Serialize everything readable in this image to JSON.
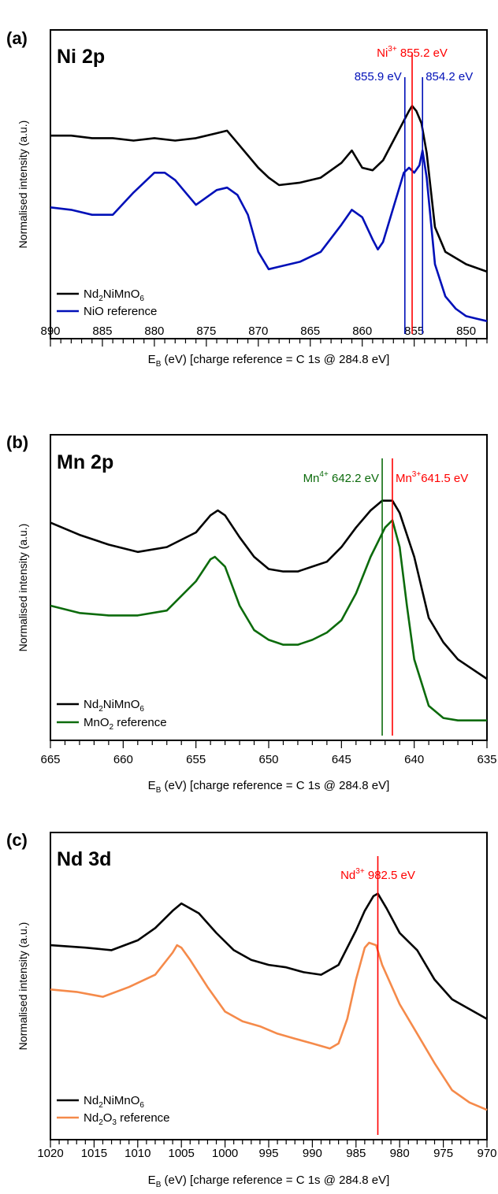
{
  "chart_data": [
    {
      "type": "line",
      "panel_label": "(a)",
      "title": "Ni 2p",
      "xlabel": "(eV) [charge reference = C 1s @ 284.8 eV]",
      "ylabel": "Normalised intensity (a.u.)",
      "xlim": [
        890,
        848
      ],
      "x_ticks": [
        "890",
        "885",
        "880",
        "875",
        "870",
        "865",
        "860",
        "855",
        "850"
      ],
      "x_tick_values": [
        890,
        885,
        880,
        875,
        870,
        865,
        860,
        855,
        850
      ],
      "ylim": [
        0,
        1
      ],
      "legend_position": "bottom-left",
      "series": [
        {
          "name": "Nd2NiMnO6",
          "legend_label": {
            "pre": "Nd",
            "sub1": "2",
            "mid": "NiMnO",
            "sub2": "6",
            "post": ""
          },
          "color": "#000000",
          "x": [
            890,
            888,
            886,
            884,
            882,
            880,
            878,
            876,
            874,
            873,
            872,
            870,
            869,
            868,
            866,
            864,
            862,
            861,
            860,
            859,
            858,
            857,
            856,
            855.5,
            855.2,
            854.8,
            854.3,
            853.8,
            853,
            852,
            850,
            848
          ],
          "y": [
            0.77,
            0.77,
            0.76,
            0.76,
            0.75,
            0.76,
            0.75,
            0.76,
            0.78,
            0.79,
            0.74,
            0.64,
            0.6,
            0.57,
            0.58,
            0.6,
            0.66,
            0.71,
            0.64,
            0.63,
            0.67,
            0.75,
            0.83,
            0.87,
            0.89,
            0.87,
            0.82,
            0.7,
            0.4,
            0.3,
            0.25,
            0.22
          ]
        },
        {
          "name": "NiO reference",
          "legend_label": {
            "pre": "NiO reference",
            "sub1": "",
            "mid": "",
            "sub2": "",
            "post": ""
          },
          "color": "#0010b8",
          "x": [
            890,
            888,
            886,
            884,
            882,
            880,
            879,
            878,
            877,
            876,
            875,
            874,
            873,
            872,
            871,
            870,
            869,
            868,
            866,
            864,
            862,
            861,
            860,
            859,
            858.5,
            858,
            857,
            856,
            855.5,
            855,
            854.5,
            854.2,
            853.8,
            853,
            852,
            851,
            850,
            849,
            848
          ],
          "y": [
            0.48,
            0.47,
            0.45,
            0.45,
            0.54,
            0.62,
            0.62,
            0.59,
            0.54,
            0.49,
            0.52,
            0.55,
            0.56,
            0.53,
            0.45,
            0.3,
            0.23,
            0.24,
            0.26,
            0.3,
            0.41,
            0.47,
            0.44,
            0.35,
            0.31,
            0.34,
            0.48,
            0.62,
            0.64,
            0.62,
            0.65,
            0.71,
            0.6,
            0.25,
            0.12,
            0.07,
            0.04,
            0.03,
            0.02
          ]
        }
      ],
      "annotations": [
        {
          "x": 855.2,
          "color": "#ff0000",
          "label_pre": "Ni",
          "label_sup": "3+",
          "label_post": " 855.2 eV",
          "label_anchor": "middle",
          "label_row": 0
        },
        {
          "x": 855.9,
          "color": "#0010b8",
          "label_pre": "855.9 eV",
          "label_sup": "",
          "label_post": "",
          "label_anchor": "end",
          "label_row": 1
        },
        {
          "x": 854.2,
          "color": "#0010b8",
          "label_pre": "854.2 eV",
          "label_sup": "",
          "label_post": "",
          "label_anchor": "start",
          "label_row": 1
        }
      ]
    },
    {
      "type": "line",
      "panel_label": "(b)",
      "title": "Mn 2p",
      "xlabel": "(eV) [charge reference = C 1s @ 284.8 eV]",
      "ylabel": "Normalised intensity (a.u.)",
      "xlim": [
        665,
        635
      ],
      "x_ticks": [
        "665",
        "660",
        "655",
        "650",
        "645",
        "640",
        "635"
      ],
      "x_tick_values": [
        665,
        660,
        655,
        650,
        645,
        640,
        635
      ],
      "ylim": [
        0,
        1
      ],
      "legend_position": "bottom-left",
      "series": [
        {
          "name": "Nd2NiMnO6",
          "legend_label": {
            "pre": "Nd",
            "sub1": "2",
            "mid": "NiMnO",
            "sub2": "6",
            "post": ""
          },
          "color": "#000000",
          "x": [
            665,
            663,
            661,
            659,
            657,
            655,
            654,
            653.5,
            653,
            652,
            651,
            650,
            649,
            648,
            647,
            646,
            645,
            644,
            643,
            642.2,
            641.5,
            641,
            640,
            639,
            638,
            637,
            636,
            635
          ],
          "y": [
            0.84,
            0.79,
            0.75,
            0.72,
            0.74,
            0.8,
            0.87,
            0.89,
            0.87,
            0.78,
            0.7,
            0.65,
            0.64,
            0.64,
            0.66,
            0.68,
            0.74,
            0.82,
            0.89,
            0.93,
            0.93,
            0.88,
            0.7,
            0.45,
            0.35,
            0.28,
            0.24,
            0.2
          ]
        },
        {
          "name": "MnO2 reference",
          "legend_label": {
            "pre": "MnO",
            "sub1": "2",
            "mid": " reference",
            "sub2": "",
            "post": ""
          },
          "color": "#0c6b0c",
          "x": [
            665,
            663,
            661,
            659,
            657,
            655,
            654,
            653.7,
            653,
            652,
            651,
            650,
            649,
            648,
            647,
            646,
            645,
            644,
            643,
            642,
            641.5,
            641,
            640.5,
            640,
            639,
            638,
            637,
            636,
            635
          ],
          "y": [
            0.5,
            0.47,
            0.46,
            0.46,
            0.48,
            0.6,
            0.69,
            0.7,
            0.66,
            0.5,
            0.4,
            0.36,
            0.34,
            0.34,
            0.36,
            0.39,
            0.44,
            0.55,
            0.7,
            0.82,
            0.85,
            0.74,
            0.5,
            0.28,
            0.09,
            0.04,
            0.03,
            0.03,
            0.03
          ]
        }
      ],
      "annotations": [
        {
          "x": 642.2,
          "color": "#0c6b0c",
          "label_pre": "Mn",
          "label_sup": "4+",
          "label_post": " 642.2 eV",
          "label_anchor": "end",
          "label_row": 0
        },
        {
          "x": 641.5,
          "color": "#ff0000",
          "label_pre": "Mn",
          "label_sup": "3+",
          "label_post": "641.5 eV",
          "label_anchor": "start",
          "label_row": 0
        }
      ]
    },
    {
      "type": "line",
      "panel_label": "(c)",
      "title": "Nd 3d",
      "xlabel": "(eV) [charge reference = C 1s @ 284.8 eV]",
      "ylabel": "Normalised intensity (a.u.)",
      "xlim": [
        1020,
        970
      ],
      "x_ticks": [
        "1020",
        "1015",
        "1010",
        "1005",
        "1000",
        "995",
        "990",
        "985",
        "980",
        "975",
        "970"
      ],
      "x_tick_values": [
        1020,
        1015,
        1010,
        1005,
        1000,
        995,
        990,
        985,
        980,
        975,
        970
      ],
      "ylim": [
        0,
        1
      ],
      "legend_position": "bottom-left",
      "series": [
        {
          "name": "Nd2NiMnO6",
          "legend_label": {
            "pre": "Nd",
            "sub1": "2",
            "mid": "NiMnO",
            "sub2": "6",
            "post": ""
          },
          "color": "#000000",
          "x": [
            1020,
            1016,
            1013,
            1010,
            1008,
            1006,
            1005,
            1003,
            1001,
            999,
            997,
            995,
            993,
            991,
            989,
            987,
            985,
            984,
            983,
            982.5,
            981.5,
            980,
            978,
            976,
            974,
            972,
            970
          ],
          "y": [
            0.74,
            0.73,
            0.72,
            0.76,
            0.81,
            0.88,
            0.91,
            0.87,
            0.79,
            0.72,
            0.68,
            0.66,
            0.65,
            0.63,
            0.62,
            0.66,
            0.8,
            0.88,
            0.94,
            0.95,
            0.89,
            0.79,
            0.72,
            0.6,
            0.52,
            0.48,
            0.44
          ]
        },
        {
          "name": "Nd2O3 reference",
          "legend_label": {
            "pre": "Nd",
            "sub1": "2",
            "mid": "O",
            "sub2": "3",
            "post": " reference"
          },
          "color": "#f58a4a",
          "x": [
            1020,
            1017,
            1014,
            1011,
            1008,
            1006,
            1005.5,
            1005,
            1004,
            1002,
            1000,
            998,
            996,
            994,
            992,
            990,
            988,
            987,
            986,
            985,
            984,
            983.5,
            982.7,
            982,
            980,
            978,
            976,
            974,
            972,
            970
          ],
          "y": [
            0.56,
            0.55,
            0.53,
            0.57,
            0.62,
            0.71,
            0.74,
            0.73,
            0.68,
            0.57,
            0.47,
            0.43,
            0.41,
            0.38,
            0.36,
            0.34,
            0.32,
            0.34,
            0.44,
            0.6,
            0.73,
            0.75,
            0.74,
            0.66,
            0.5,
            0.38,
            0.26,
            0.15,
            0.1,
            0.07
          ]
        }
      ],
      "annotations": [
        {
          "x": 982.5,
          "color": "#ff0000",
          "label_pre": "Nd",
          "label_sup": "3+",
          "label_post": " 982.5 eV",
          "label_anchor": "middle",
          "label_row": 0
        }
      ]
    }
  ]
}
